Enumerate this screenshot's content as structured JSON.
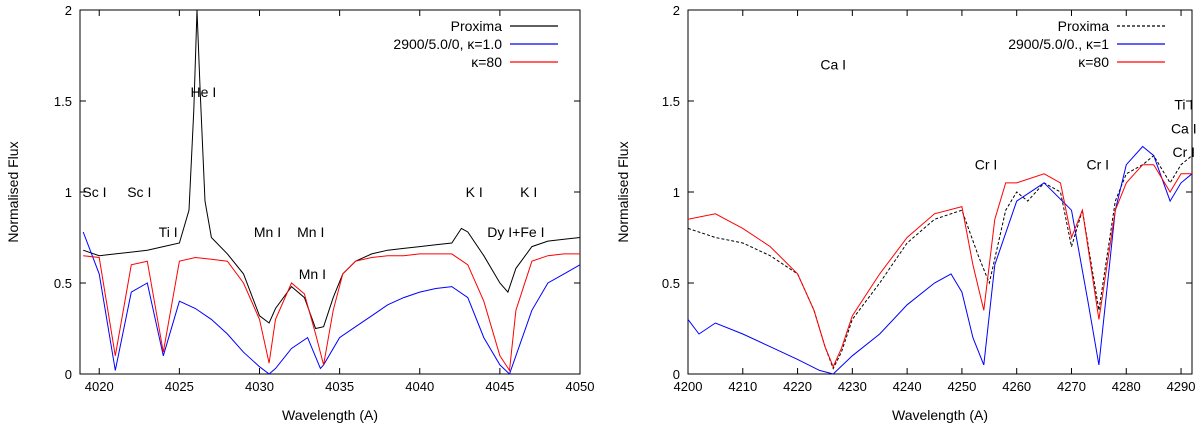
{
  "chart_data": [
    {
      "type": "line",
      "xlabel": "Wavelength (A)",
      "ylabel": "Normalised Flux",
      "xlim": [
        4018.8,
        4050
      ],
      "ylim": [
        0,
        2
      ],
      "xticks": [
        "4020",
        "4025",
        "4030",
        "4035",
        "4040",
        "4045",
        "4050"
      ],
      "xtick_values": [
        4020,
        4025,
        4030,
        4035,
        4040,
        4045,
        4050
      ],
      "yticks": [
        "0",
        "0.5",
        "1",
        "1.5",
        "2"
      ],
      "ytick_values": [
        0,
        0.5,
        1,
        1.5,
        2
      ],
      "legend_position": "top-right",
      "series": [
        {
          "name": "Proxima",
          "color": "#000000",
          "style": "solid",
          "x": [
            4019,
            4020,
            4021,
            4022,
            4023,
            4024,
            4025,
            4025.6,
            4025.9,
            4026.1,
            4026.3,
            4026.6,
            4027,
            4028,
            4029,
            4030,
            4030.6,
            4031,
            4032,
            4032.8,
            4033.5,
            4034,
            4034.6,
            4035.2,
            4036,
            4037,
            4038,
            4039,
            4040,
            4041,
            4042,
            4042.6,
            4043,
            4044,
            4045,
            4045.5,
            4046,
            4047,
            4048,
            4049,
            4050
          ],
          "values": [
            0.68,
            0.65,
            0.66,
            0.67,
            0.68,
            0.7,
            0.72,
            0.9,
            1.45,
            2.0,
            1.55,
            0.95,
            0.75,
            0.66,
            0.55,
            0.32,
            0.28,
            0.36,
            0.48,
            0.42,
            0.25,
            0.26,
            0.42,
            0.55,
            0.62,
            0.66,
            0.68,
            0.69,
            0.7,
            0.71,
            0.72,
            0.8,
            0.78,
            0.65,
            0.5,
            0.45,
            0.58,
            0.7,
            0.73,
            0.74,
            0.75
          ]
        },
        {
          "name": "2900/5.0/0, κ=1.0",
          "color": "#0000ff",
          "style": "solid",
          "x": [
            4019,
            4020,
            4021,
            4022,
            4023,
            4024,
            4025,
            4026,
            4027,
            4028,
            4029,
            4030,
            4030.6,
            4031,
            4032,
            4033,
            4033.8,
            4034,
            4035,
            4036,
            4037,
            4038,
            4039,
            4040,
            4041,
            4042,
            4043,
            4044,
            4045,
            4045.6,
            4046,
            4047,
            4048,
            4049,
            4050
          ],
          "values": [
            0.78,
            0.55,
            0.02,
            0.45,
            0.5,
            0.1,
            0.4,
            0.36,
            0.3,
            0.22,
            0.12,
            0.04,
            0.0,
            0.03,
            0.14,
            0.2,
            0.03,
            0.05,
            0.2,
            0.26,
            0.32,
            0.38,
            0.42,
            0.45,
            0.47,
            0.48,
            0.42,
            0.2,
            0.05,
            0.0,
            0.1,
            0.35,
            0.5,
            0.55,
            0.6
          ]
        },
        {
          "name": "κ=80",
          "color": "#ff0000",
          "style": "solid",
          "x": [
            4019,
            4020,
            4021,
            4022,
            4023,
            4024,
            4025,
            4026,
            4027,
            4028,
            4029,
            4030,
            4030.6,
            4031,
            4032,
            4032.8,
            4033.5,
            4034,
            4034.6,
            4035.2,
            4036,
            4037,
            4038,
            4039,
            4040,
            4041,
            4042,
            4043,
            4044,
            4045,
            4045.6,
            4046,
            4047,
            4048,
            4049,
            4050
          ],
          "values": [
            0.65,
            0.64,
            0.1,
            0.6,
            0.62,
            0.12,
            0.62,
            0.64,
            0.63,
            0.62,
            0.5,
            0.3,
            0.06,
            0.3,
            0.5,
            0.44,
            0.22,
            0.05,
            0.35,
            0.55,
            0.62,
            0.64,
            0.65,
            0.65,
            0.66,
            0.66,
            0.66,
            0.6,
            0.4,
            0.1,
            0.02,
            0.35,
            0.62,
            0.65,
            0.66,
            0.66
          ]
        }
      ],
      "annotations": [
        {
          "text": "Sc I",
          "x": 4019.7,
          "y": 1.0
        },
        {
          "text": "Sc I",
          "x": 4022.5,
          "y": 1.0
        },
        {
          "text": "Ti I",
          "x": 4024.3,
          "y": 0.78
        },
        {
          "text": "He I",
          "x": 4026.5,
          "y": 1.55
        },
        {
          "text": "Mn I",
          "x": 4030.5,
          "y": 0.78
        },
        {
          "text": "Mn I",
          "x": 4033.2,
          "y": 0.78
        },
        {
          "text": "Mn I",
          "x": 4033.3,
          "y": 0.55
        },
        {
          "text": "K I",
          "x": 4043.4,
          "y": 1.0
        },
        {
          "text": "K I",
          "x": 4046.8,
          "y": 1.0
        },
        {
          "text": "Dy I+Fe I",
          "x": 4046,
          "y": 0.78
        }
      ]
    },
    {
      "type": "line",
      "xlabel": "Wavelength (A)",
      "ylabel": "Normalised Flux",
      "xlim": [
        4200,
        4292
      ],
      "ylim": [
        0,
        2
      ],
      "xticks": [
        "4200",
        "4210",
        "4220",
        "4230",
        "4240",
        "4250",
        "4260",
        "4270",
        "4280",
        "4290"
      ],
      "xtick_values": [
        4200,
        4210,
        4220,
        4230,
        4240,
        4250,
        4260,
        4270,
        4280,
        4290
      ],
      "yticks": [
        "0",
        "0.5",
        "1",
        "1.5",
        "2"
      ],
      "ytick_values": [
        0,
        0.5,
        1,
        1.5,
        2
      ],
      "legend_position": "top-right",
      "series": [
        {
          "name": "Proxima",
          "color": "#000000",
          "style": "dashed",
          "x": [
            4200,
            4205,
            4210,
            4215,
            4220,
            4223,
            4225,
            4226.5,
            4228,
            4230,
            4235,
            4240,
            4245,
            4250,
            4253,
            4255,
            4258,
            4260,
            4262,
            4265,
            4268,
            4270,
            4272,
            4275,
            4278,
            4280,
            4283,
            4285,
            4288,
            4290,
            4292
          ],
          "values": [
            0.8,
            0.75,
            0.72,
            0.65,
            0.55,
            0.35,
            0.15,
            0.03,
            0.12,
            0.3,
            0.5,
            0.72,
            0.85,
            0.9,
            0.65,
            0.5,
            0.9,
            1.0,
            0.95,
            1.05,
            1.0,
            0.7,
            0.9,
            0.35,
            0.95,
            1.1,
            1.15,
            1.2,
            1.05,
            1.15,
            1.2
          ]
        },
        {
          "name": "2900/5.0/0., κ=1",
          "color": "#0000ff",
          "style": "solid",
          "x": [
            4200,
            4202,
            4205,
            4210,
            4215,
            4220,
            4224,
            4226.5,
            4230,
            4235,
            4240,
            4245,
            4248,
            4250,
            4252,
            4254,
            4256,
            4260,
            4265,
            4270,
            4273,
            4275,
            4278,
            4280,
            4283,
            4285,
            4288,
            4290,
            4292
          ],
          "values": [
            0.3,
            0.22,
            0.28,
            0.22,
            0.15,
            0.08,
            0.02,
            0.0,
            0.1,
            0.22,
            0.38,
            0.5,
            0.55,
            0.45,
            0.2,
            0.05,
            0.6,
            0.95,
            1.05,
            0.9,
            0.4,
            0.05,
            0.9,
            1.15,
            1.25,
            1.2,
            0.95,
            1.05,
            1.1
          ]
        },
        {
          "name": "κ=80",
          "color": "#ff0000",
          "style": "solid",
          "x": [
            4200,
            4205,
            4210,
            4215,
            4220,
            4223,
            4225,
            4226.5,
            4228,
            4230,
            4235,
            4240,
            4245,
            4250,
            4252,
            4254,
            4256,
            4258,
            4260,
            4265,
            4268,
            4270,
            4272,
            4275,
            4278,
            4280,
            4283,
            4285,
            4288,
            4290,
            4292
          ],
          "values": [
            0.85,
            0.88,
            0.8,
            0.7,
            0.55,
            0.35,
            0.15,
            0.04,
            0.14,
            0.32,
            0.55,
            0.75,
            0.88,
            0.92,
            0.6,
            0.35,
            0.85,
            1.05,
            1.05,
            1.1,
            1.05,
            0.75,
            0.9,
            0.3,
            0.9,
            1.05,
            1.15,
            1.15,
            1.0,
            1.1,
            1.1
          ]
        }
      ],
      "annotations": [
        {
          "text": "Ca I",
          "x": 4226.5,
          "y": 1.7
        },
        {
          "text": "Cr I",
          "x": 4254.4,
          "y": 1.15
        },
        {
          "text": "Cr I",
          "x": 4274.8,
          "y": 1.15
        },
        {
          "text": "Ti I",
          "x": 4290.5,
          "y": 1.48
        },
        {
          "text": "Ca I",
          "x": 4290.5,
          "y": 1.35
        },
        {
          "text": "Cr I",
          "x": 4290.5,
          "y": 1.22
        }
      ]
    }
  ]
}
